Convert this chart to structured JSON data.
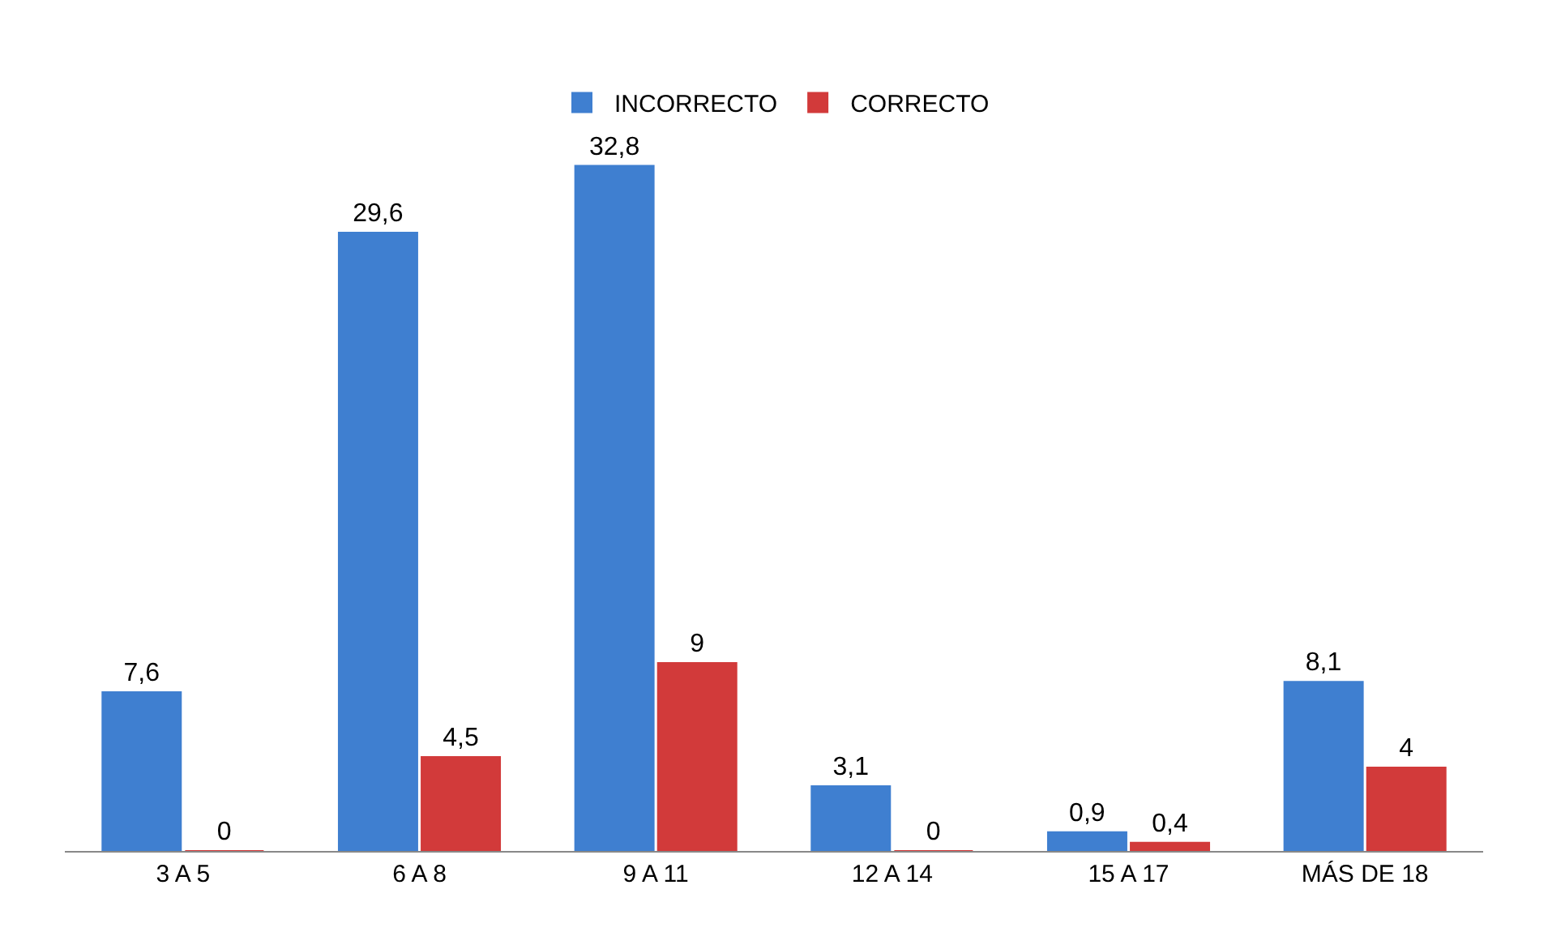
{
  "chart_data": {
    "type": "bar",
    "categories": [
      "3 A 5",
      "6 A 8",
      "9 A 11",
      "12 A 14",
      "15 A 17",
      "MÁS DE 18"
    ],
    "series": [
      {
        "name": "INCORRECTO",
        "color": "#3f7fd0",
        "values": [
          7.6,
          29.6,
          32.8,
          3.1,
          0.9,
          8.1
        ],
        "value_labels": [
          "7,6",
          "29,6",
          "32,8",
          "3,1",
          "0,9",
          "8,1"
        ]
      },
      {
        "name": "CORRECTO",
        "color": "#d23a3a",
        "values": [
          0,
          4.5,
          9,
          0,
          0.4,
          4
        ],
        "value_labels": [
          "0",
          "4,5",
          "9",
          "0",
          "0,4",
          "4"
        ]
      }
    ],
    "legend": "top"
  }
}
